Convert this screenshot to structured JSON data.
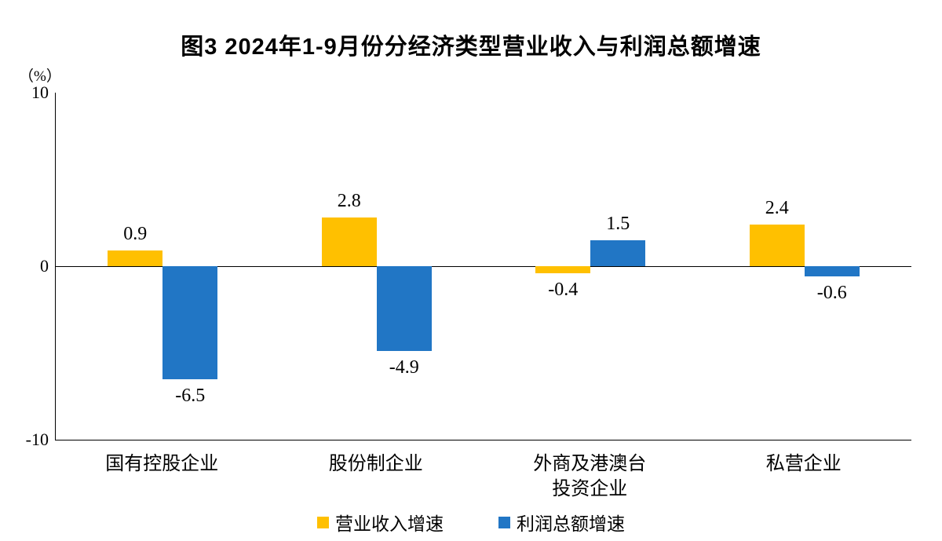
{
  "chart_data": {
    "type": "bar",
    "title": "图3  2024年1-9月份分经济类型营业收入与利润总额增速",
    "ylabel": "（%）",
    "xlabel": "",
    "ylim": [
      -10,
      10
    ],
    "yticks": [
      10,
      0,
      -10
    ],
    "grid": false,
    "legend_position": "bottom",
    "categories": [
      "国有控股企业",
      "股份制企业",
      "外商及港澳台投资企业",
      "私营企业"
    ],
    "category_lines": [
      [
        "国有控股企业"
      ],
      [
        "股份制企业"
      ],
      [
        "外商及港澳台",
        "投资企业"
      ],
      [
        "私营企业"
      ]
    ],
    "series": [
      {
        "name": "营业收入增速",
        "color": "#FFC000",
        "values": [
          0.9,
          2.8,
          -0.4,
          2.4
        ]
      },
      {
        "name": "利润总额增速",
        "color": "#2176C5",
        "values": [
          -6.5,
          -4.9,
          1.5,
          -0.6
        ]
      }
    ]
  },
  "colors": {
    "axis": "#000000",
    "background": "#ffffff",
    "revenue_series": "#FFC000",
    "profit_series": "#2176C5"
  }
}
